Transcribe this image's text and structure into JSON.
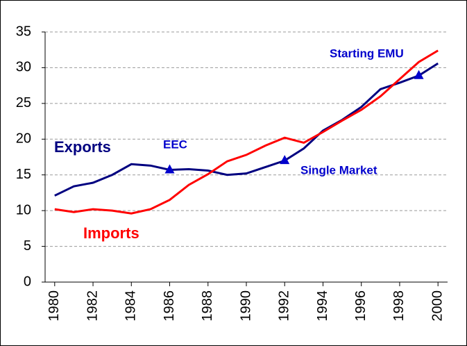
{
  "chart_data": {
    "type": "line",
    "x": [
      1980,
      1981,
      1982,
      1983,
      1984,
      1985,
      1986,
      1987,
      1988,
      1989,
      1990,
      1991,
      1992,
      1993,
      1994,
      1995,
      1996,
      1997,
      1998,
      1999,
      2000
    ],
    "series": [
      {
        "name": "Exports",
        "color": "#000080",
        "values": [
          12.1,
          13.4,
          13.9,
          15.0,
          16.5,
          16.3,
          15.7,
          15.8,
          15.6,
          15.0,
          15.2,
          16.1,
          17.0,
          18.7,
          21.2,
          22.7,
          24.5,
          27.0,
          27.9,
          28.9,
          30.6
        ]
      },
      {
        "name": "Imports",
        "color": "#ff0000",
        "values": [
          10.2,
          9.8,
          10.2,
          10.0,
          9.6,
          10.2,
          11.5,
          13.6,
          15.1,
          16.9,
          17.8,
          19.1,
          20.2,
          19.5,
          21.0,
          22.6,
          24.1,
          26.0,
          28.4,
          30.8,
          32.4
        ]
      }
    ],
    "annotations": [
      {
        "text": "EEC",
        "x": 1986,
        "y": 15.7
      },
      {
        "text": "Single Market",
        "x": 1992,
        "y": 17.0
      },
      {
        "text": "Starting EMU",
        "x": 1999,
        "y": 28.9
      }
    ],
    "annotation_color": "#0000cc",
    "xlim": [
      1979.5,
      2000.5
    ],
    "xticks": [
      1980,
      1982,
      1984,
      1986,
      1988,
      1990,
      1992,
      1994,
      1996,
      1998,
      2000
    ],
    "ylim": [
      0,
      35
    ],
    "yticks": [
      0,
      5,
      10,
      15,
      20,
      25,
      30,
      35
    ],
    "grid": true
  }
}
